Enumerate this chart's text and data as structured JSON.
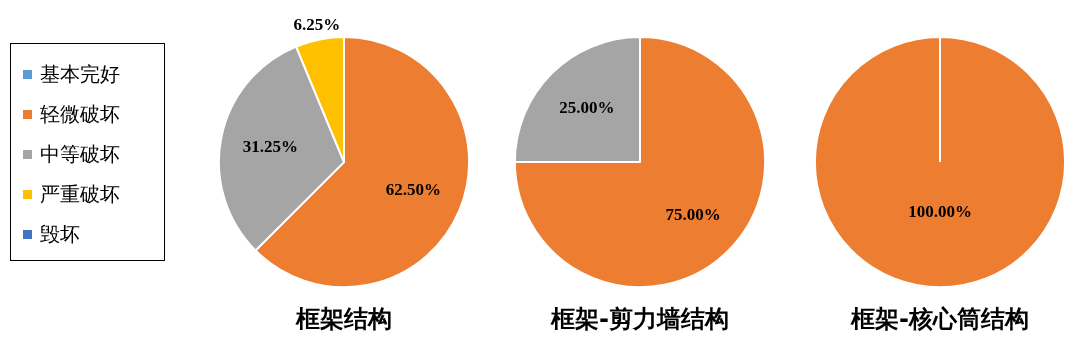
{
  "chart_data": [
    {
      "type": "pie",
      "title": "框架结构",
      "legend": "left",
      "categories": [
        "基本完好",
        "轻微破坏",
        "中等破坏",
        "严重破坏",
        "毁坏"
      ],
      "values": [
        0,
        62.5,
        31.25,
        6.25,
        0
      ],
      "colors": [
        "#5b9bd5",
        "#ed7d31",
        "#a5a5a5",
        "#ffc000",
        "#4472c4"
      ],
      "value_labels": [
        null,
        "62.50%",
        "31.25%",
        "6.25%",
        null
      ]
    },
    {
      "type": "pie",
      "title": "框架-剪力墙结构",
      "categories": [
        null,
        null,
        null,
        null,
        null
      ],
      "values": [
        0,
        75,
        25,
        0,
        0
      ],
      "colors": [
        "#5b9bd5",
        "#ed7d31",
        "#a5a5a5",
        "#ffc000",
        "#4472c4"
      ],
      "value_labels": [
        null,
        "75.00%",
        "25.00%",
        null,
        null
      ]
    },
    {
      "type": "pie",
      "title": "框架-核心筒结构",
      "categories": [
        null,
        null,
        null,
        null,
        null
      ],
      "values": [
        0,
        100,
        0,
        0,
        0
      ],
      "colors": [
        "#5b9bd5",
        "#ed7d31",
        "#a5a5a5",
        "#ffc000",
        "#4472c4"
      ],
      "value_labels": [
        null,
        "100.00%",
        null,
        null,
        null
      ]
    }
  ]
}
